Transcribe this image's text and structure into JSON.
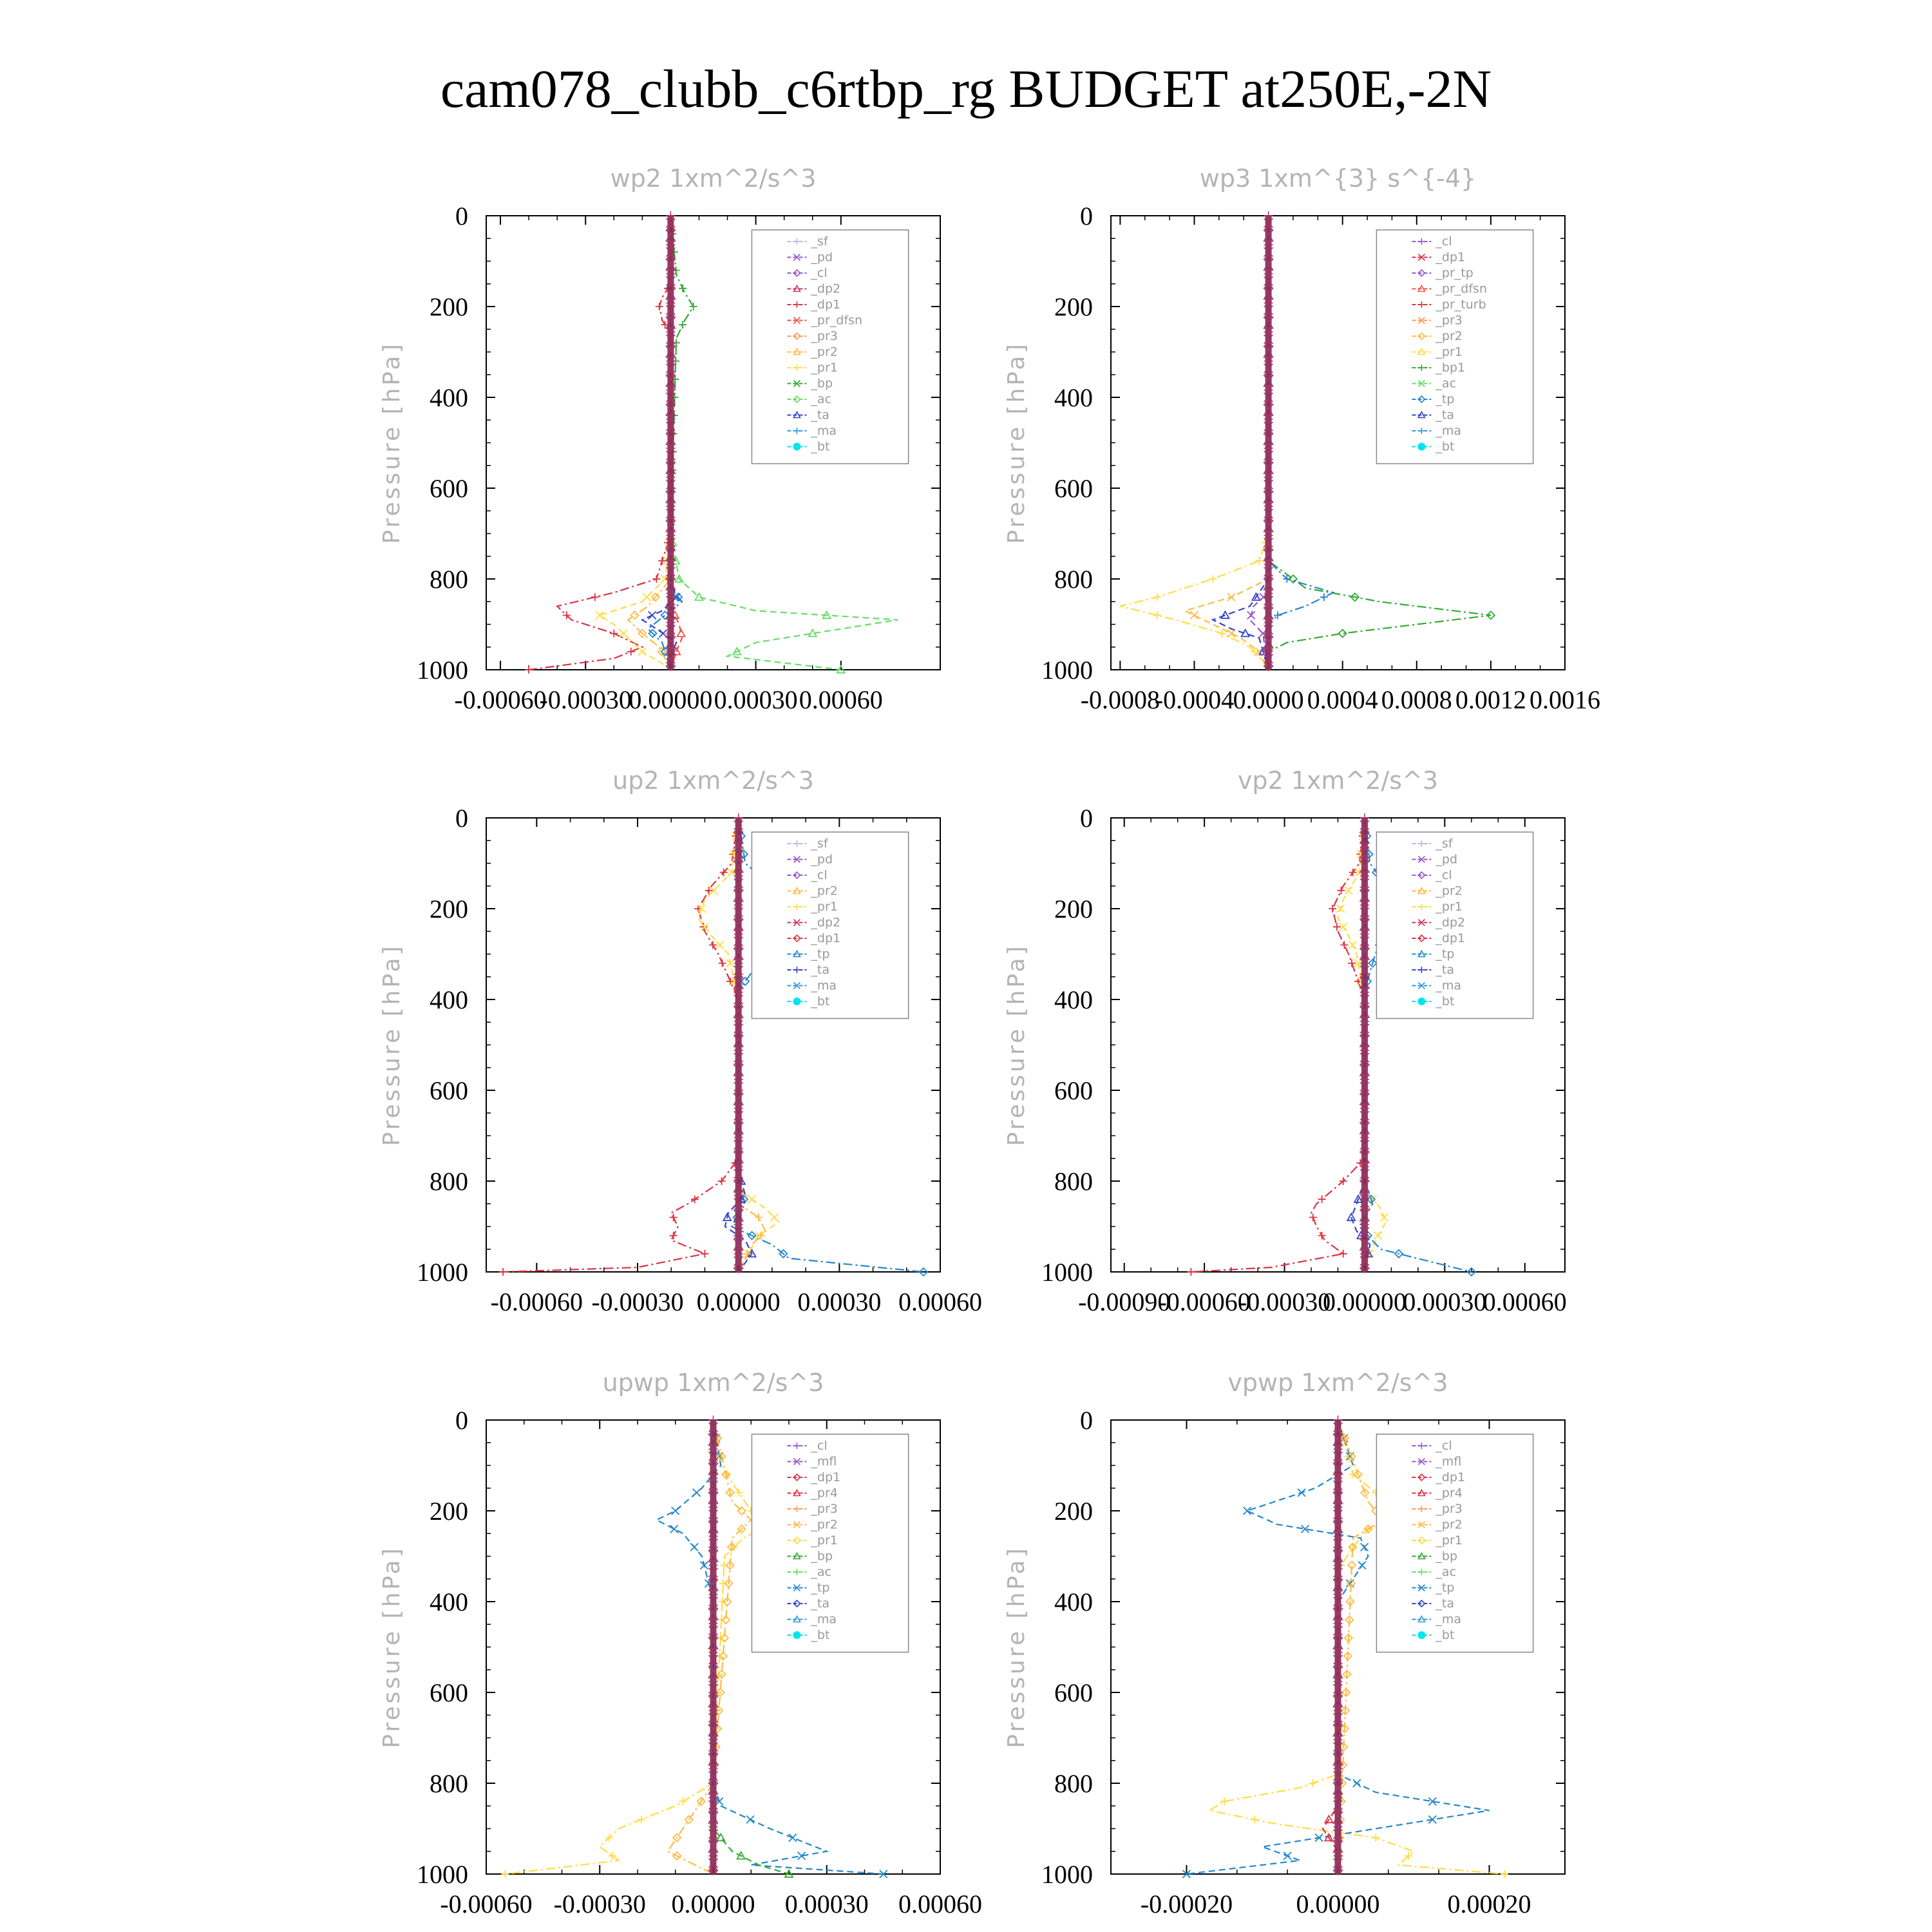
{
  "title": "cam078_clubb_c6rtbp_rg  BUDGET at250E,-2N",
  "colors": {
    "sf": "#c8b0e0",
    "pd": "#9955cc",
    "cl": "#9955cc",
    "dp2": "#cc3366",
    "dp1": "#dd3344",
    "pr_dfsn": "#ee5544",
    "pr3": "#ff9955",
    "pr2": "#ffbb44",
    "pr1": "#ffdd44",
    "bp": "#33aa33",
    "ac": "#66dd66",
    "tp": "#2288cc",
    "ta": "#3344cc",
    "ma": "#3399dd",
    "bt": "#00e5ee",
    "mfl": "#9955cc",
    "pr4": "#dd3344",
    "pr_tp": "#9955cc",
    "pr_turb": "#dd3344",
    "bp1": "#33aa33",
    "main_line": "#7a2a55"
  },
  "chart_data": [
    {
      "type": "line",
      "id": "wp2",
      "title": "wp2   1xm^2/s^3",
      "ylabel": "Pressure [hPa]",
      "xlim": [
        -0.00065,
        0.00095
      ],
      "ylim": [
        1000,
        0
      ],
      "xticks": [
        -0.0006,
        -0.0003,
        0.0,
        0.0003,
        0.0006
      ],
      "xtick_labels": [
        "-0.00060",
        "-0.00030",
        "0.00000",
        "0.00030",
        "0.00060"
      ],
      "yticks": [
        0,
        200,
        400,
        600,
        800,
        1000
      ],
      "legend": [
        "_sf",
        "_pd",
        "_cl",
        "_dp2",
        "_dp1",
        "_pr_dfsn",
        "_pr3",
        "_pr2",
        "_pr1",
        "_bp",
        "_ac",
        "_ta",
        "_ma",
        "_bt"
      ],
      "series": [
        {
          "key": "dp1",
          "y": [
            0,
            150,
            180,
            200,
            230,
            260,
            700,
            800,
            830,
            860,
            890,
            920,
            950,
            975,
            1000
          ],
          "x": [
            0,
            0,
            -3e-05,
            -4e-05,
            -3e-05,
            0,
            0,
            -5e-05,
            -0.0002,
            -0.0004,
            -0.00035,
            -0.0002,
            -0.0001,
            -0.0002,
            -0.0005
          ]
        },
        {
          "key": "pr1",
          "y": [
            0,
            700,
            800,
            850,
            880,
            900,
            930,
            960,
            990,
            1000
          ],
          "x": [
            0,
            0,
            -2e-05,
            -0.0001,
            -0.00025,
            -0.0002,
            -0.00015,
            -0.0001,
            -2e-05,
            0
          ]
        },
        {
          "key": "pr2",
          "y": [
            0,
            800,
            860,
            890,
            920,
            950,
            1000
          ],
          "x": [
            0,
            0,
            -8e-05,
            -0.00015,
            -0.0001,
            -4e-05,
            0
          ]
        },
        {
          "key": "ac",
          "y": [
            0,
            700,
            800,
            840,
            870,
            890,
            910,
            940,
            970,
            1000
          ],
          "x": [
            0,
            0,
            3e-05,
            0.0001,
            0.0003,
            0.0008,
            0.0006,
            0.0003,
            0.0002,
            0.0006
          ]
        },
        {
          "key": "bp",
          "y": [
            0,
            130,
            170,
            200,
            230,
            270,
            700,
            1000
          ],
          "x": [
            0,
            2e-05,
            5e-05,
            8e-05,
            5e-05,
            2e-05,
            0,
            0
          ]
        },
        {
          "key": "ta",
          "y": [
            0,
            800,
            840,
            870,
            890,
            910,
            940,
            970,
            1000
          ],
          "x": [
            0,
            0,
            2e-05,
            -3e-05,
            -0.0001,
            -5e-05,
            2e-05,
            0,
            0
          ]
        },
        {
          "key": "tp",
          "y": [
            0,
            820,
            850,
            880,
            910,
            940,
            1000
          ],
          "x": [
            0,
            0,
            4e-05,
            -2e-05,
            -8e-05,
            -3e-05,
            0
          ]
        },
        {
          "key": "pr_dfsn",
          "y": [
            0,
            860,
            900,
            930,
            960,
            1000
          ],
          "x": [
            0,
            0,
            3e-05,
            4e-05,
            2e-05,
            0
          ]
        }
      ]
    },
    {
      "type": "line",
      "id": "wp3",
      "title": "wp3   1xm^{3} s^{-4}",
      "ylabel": "Pressure [hPa]",
      "xlim": [
        -0.00085,
        0.0016
      ],
      "ylim": [
        1000,
        0
      ],
      "xticks": [
        -0.0008,
        -0.0004,
        0.0,
        0.0004,
        0.0008,
        0.0012,
        0.0016
      ],
      "xtick_labels": [
        "-0.0008",
        "-0.0004",
        "0.0000",
        "0.0004",
        "0.0008",
        "0.0012",
        "0.0016"
      ],
      "yticks": [
        0,
        200,
        400,
        600,
        800,
        1000
      ],
      "legend": [
        "_cl",
        "_dp1",
        "_pr_tp",
        "_pr_dfsn",
        "_pr_turb",
        "_pr3",
        "_pr2",
        "_pr1",
        "_bp1",
        "_ac",
        "_tp",
        "_ta",
        "_ma",
        "_bt"
      ],
      "series": [
        {
          "key": "pr1",
          "y": [
            0,
            700,
            760,
            800,
            840,
            860,
            890,
            920,
            950,
            980,
            1000
          ],
          "x": [
            0,
            0,
            -5e-05,
            -0.0003,
            -0.0006,
            -0.0008,
            -0.0005,
            -0.00025,
            -0.0001,
            -3e-05,
            0
          ]
        },
        {
          "key": "pr2",
          "y": [
            0,
            800,
            840,
            870,
            900,
            930,
            960,
            1000
          ],
          "x": [
            0,
            0,
            -0.0002,
            -0.00045,
            -0.0003,
            -0.00015,
            -5e-05,
            0
          ]
        },
        {
          "key": "bp1",
          "y": [
            0,
            760,
            820,
            850,
            880,
            900,
            920,
            940,
            960,
            1000
          ],
          "x": [
            0,
            0,
            0.0002,
            0.0006,
            0.0012,
            0.0008,
            0.0004,
            0.0001,
            0,
            0
          ]
        },
        {
          "key": "ta",
          "y": [
            0,
            800,
            860,
            890,
            910,
            930,
            1000
          ],
          "x": [
            0,
            0,
            -0.0001,
            -0.0003,
            -0.0002,
            -5e-05,
            0
          ]
        },
        {
          "key": "tp",
          "y": [
            0,
            760,
            800,
            830,
            860,
            880,
            900,
            1000
          ],
          "x": [
            0,
            0,
            0.0001,
            0.00035,
            0.0002,
            5e-05,
            0,
            0
          ]
        },
        {
          "key": "pr_tp",
          "y": [
            0,
            830,
            860,
            890,
            920,
            1000
          ],
          "x": [
            0,
            0,
            -8e-05,
            -0.0001,
            -3e-05,
            0
          ]
        }
      ]
    },
    {
      "type": "line",
      "id": "up2",
      "title": "up2   1xm^2/s^3",
      "ylabel": "Pressure [hPa]",
      "xlim": [
        -0.00075,
        0.0006
      ],
      "ylim": [
        1000,
        0
      ],
      "xticks": [
        -0.0006,
        -0.0003,
        0.0,
        0.0003,
        0.0006
      ],
      "xtick_labels": [
        "-0.00060",
        "-0.00030",
        "0.00000",
        "0.00030",
        "0.00060"
      ],
      "yticks": [
        0,
        200,
        400,
        600,
        800,
        1000
      ],
      "legend": [
        "_sf",
        "_pd",
        "_cl",
        "_pr2",
        "_pr1",
        "_dp2",
        "_dp1",
        "_tp",
        "_ta",
        "_ma",
        "_bt"
      ],
      "series": [
        {
          "key": "dp1",
          "y": [
            0,
            100,
            150,
            200,
            250,
            300,
            350,
            400,
            750,
            800,
            850,
            870,
            900,
            930,
            960,
            990,
            1000
          ],
          "x": [
            0,
            -2e-05,
            -8e-05,
            -0.00012,
            -0.0001,
            -6e-05,
            -3e-05,
            0,
            0,
            -5e-05,
            -0.00015,
            -0.0002,
            -0.00018,
            -0.0002,
            -0.0001,
            -0.0003,
            -0.0007
          ]
        },
        {
          "key": "pr1",
          "y": [
            0,
            120,
            180,
            220,
            260,
            300,
            400,
            820,
            860,
            890,
            920,
            960,
            1000
          ],
          "x": [
            0,
            -2e-05,
            -0.0001,
            -0.00012,
            -8e-05,
            -3e-05,
            0,
            0,
            8e-05,
            0.00012,
            6e-05,
            3e-05,
            0
          ]
        },
        {
          "key": "tp",
          "y": [
            0,
            100,
            150,
            200,
            240,
            280,
            330,
            380,
            800,
            850,
            900,
            940,
            970,
            1000
          ],
          "x": [
            0,
            2e-05,
            0.0001,
            0.0002,
            0.00012,
            8e-05,
            5e-05,
            0,
            0,
            2e-05,
            -2e-05,
            0.0001,
            0.00015,
            0.00055
          ]
        },
        {
          "key": "ta",
          "y": [
            0,
            780,
            830,
            870,
            900,
            930,
            960,
            1000
          ],
          "x": [
            0,
            0,
            2e-05,
            -3e-05,
            -4e-05,
            2e-05,
            4e-05,
            0
          ]
        },
        {
          "key": "pr2",
          "y": [
            0,
            850,
            880,
            910,
            940,
            1000
          ],
          "x": [
            0,
            0,
            6e-05,
            8e-05,
            4e-05,
            0
          ]
        }
      ]
    },
    {
      "type": "line",
      "id": "vp2",
      "title": "vp2   1xm^2/s^3",
      "ylabel": "Pressure [hPa]",
      "xlim": [
        -0.00095,
        0.00075
      ],
      "ylim": [
        1000,
        0
      ],
      "xticks": [
        -0.0009,
        -0.0006,
        -0.0003,
        0.0,
        0.0003,
        0.0006
      ],
      "xtick_labels": [
        "-0.00090",
        "-0.00060",
        "-0.00030",
        "0.00000",
        "0.00030",
        "0.00060"
      ],
      "yticks": [
        0,
        200,
        400,
        600,
        800,
        1000
      ],
      "legend": [
        "_sf",
        "_pd",
        "_cl",
        "_pr2",
        "_pr1",
        "_dp2",
        "_dp1",
        "_tp",
        "_ta",
        "_ma",
        "_bt"
      ],
      "series": [
        {
          "key": "dp1",
          "y": [
            0,
            100,
            150,
            200,
            250,
            300,
            350,
            400,
            750,
            800,
            850,
            870,
            900,
            930,
            960,
            990,
            1000
          ],
          "x": [
            0,
            -2e-05,
            -8e-05,
            -0.00012,
            -0.0001,
            -6e-05,
            -3e-05,
            0,
            0,
            -8e-05,
            -0.00018,
            -0.0002,
            -0.00018,
            -0.00015,
            -8e-05,
            -0.00035,
            -0.00065
          ]
        },
        {
          "key": "pr1",
          "y": [
            0,
            120,
            180,
            220,
            260,
            300,
            400,
            820,
            860,
            890,
            920,
            960,
            1000
          ],
          "x": [
            0,
            -2e-05,
            -8e-05,
            -0.0001,
            -6e-05,
            -3e-05,
            0,
            0,
            6e-05,
            8e-05,
            5e-05,
            2e-05,
            0
          ]
        },
        {
          "key": "tp",
          "y": [
            0,
            100,
            150,
            200,
            250,
            300,
            380,
            800,
            850,
            900,
            950,
            1000
          ],
          "x": [
            0,
            2e-05,
            8e-05,
            0.00014,
            8e-05,
            4e-05,
            0,
            0,
            3e-05,
            -2e-05,
            6e-05,
            0.0004
          ]
        },
        {
          "key": "ta",
          "y": [
            0,
            800,
            850,
            880,
            910,
            940,
            1000
          ],
          "x": [
            0,
            0,
            -3e-05,
            -5e-05,
            -3e-05,
            2e-05,
            0
          ]
        }
      ]
    },
    {
      "type": "line",
      "id": "upwp",
      "title": "upwp   1xm^2/s^3",
      "ylabel": "Pressure [hPa]",
      "xlim": [
        -0.0006,
        0.0006
      ],
      "ylim": [
        1000,
        0
      ],
      "xticks": [
        -0.0006,
        -0.0003,
        0.0,
        0.0003,
        0.0006
      ],
      "xtick_labels": [
        "-0.00060",
        "-0.00030",
        "0.00000",
        "0.00030",
        "0.00060"
      ],
      "yticks": [
        0,
        200,
        400,
        600,
        800,
        1000
      ],
      "legend": [
        "_cl",
        "_mfl",
        "_dp1",
        "_pr4",
        "_pr3",
        "_pr2",
        "_pr1",
        "_bp",
        "_ac",
        "_tp",
        "_ta",
        "_ma",
        "_bt"
      ],
      "series": [
        {
          "key": "pr1",
          "y": [
            0,
            100,
            150,
            200,
            230,
            260,
            300,
            800,
            850,
            900,
            940,
            970,
            1000
          ],
          "x": [
            0,
            2e-05,
            6e-05,
            0.0001,
            0.00015,
            8e-05,
            3e-05,
            0,
            -0.0001,
            -0.00025,
            -0.0003,
            -0.00025,
            -0.00055
          ]
        },
        {
          "key": "tp",
          "y": [
            0,
            100,
            150,
            200,
            220,
            250,
            300,
            400,
            800,
            850,
            900,
            950,
            980,
            1000
          ],
          "x": [
            0,
            2e-05,
            -3e-05,
            -0.0001,
            -0.00015,
            -8e-05,
            -3e-05,
            0,
            0,
            2e-05,
            0.00015,
            0.0003,
            0.0001,
            0.00045
          ]
        },
        {
          "key": "pr2",
          "y": [
            0,
            180,
            220,
            260,
            800,
            900,
            950,
            1000
          ],
          "x": [
            0,
            5e-05,
            0.0001,
            5e-05,
            0,
            -8e-05,
            -0.00012,
            0
          ]
        },
        {
          "key": "bp",
          "y": [
            0,
            900,
            950,
            980,
            1000
          ],
          "x": [
            0,
            0,
            5e-05,
            0.00012,
            0.0002
          ]
        }
      ]
    },
    {
      "type": "line",
      "id": "vpwp",
      "title": "vpwp   1xm^2/s^3",
      "ylabel": "Pressure [hPa]",
      "xlim": [
        -0.0003,
        0.0003
      ],
      "ylim": [
        1000,
        0
      ],
      "xticks": [
        -0.0002,
        0.0,
        0.0002
      ],
      "xtick_labels": [
        "-0.00020",
        "0.00000",
        "0.00020"
      ],
      "yticks": [
        0,
        200,
        400,
        600,
        800,
        1000
      ],
      "legend": [
        "_cl",
        "_mfl",
        "_dp1",
        "_pr4",
        "_pr3",
        "_pr2",
        "_pr1",
        "_bp",
        "_ac",
        "_tp",
        "_ta",
        "_ma",
        "_bt"
      ],
      "series": [
        {
          "key": "pr1",
          "y": [
            0,
            120,
            160,
            200,
            240,
            280,
            330,
            780,
            810,
            840,
            860,
            890,
            920,
            950,
            980,
            1000
          ],
          "x": [
            0,
            2e-05,
            5e-05,
            0.0001,
            4e-05,
            2e-05,
            0,
            0,
            -5e-05,
            -0.00015,
            -0.00017,
            -8e-05,
            5e-05,
            0.0001,
            8e-05,
            0.00022
          ]
        },
        {
          "key": "tp",
          "y": [
            0,
            100,
            150,
            200,
            230,
            260,
            300,
            400,
            780,
            820,
            860,
            900,
            940,
            970,
            1000
          ],
          "x": [
            0,
            2e-05,
            -3e-05,
            -0.00012,
            -8e-05,
            3e-05,
            4e-05,
            0,
            0,
            5e-05,
            0.0002,
            5e-05,
            -0.0001,
            -5e-05,
            -0.0002
          ]
        },
        {
          "key": "pr2",
          "y": [
            0,
            180,
            220,
            260,
            1000
          ],
          "x": [
            0,
            4e-05,
            6e-05,
            2e-05,
            0
          ]
        },
        {
          "key": "dp1",
          "y": [
            0,
            850,
            900,
            950,
            1000
          ],
          "x": [
            0,
            0,
            -2e-05,
            0,
            0
          ]
        }
      ]
    }
  ]
}
